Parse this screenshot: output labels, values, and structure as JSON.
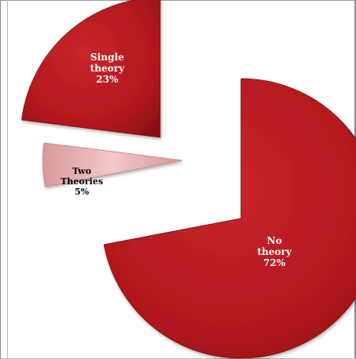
{
  "chart_data": {
    "type": "pie",
    "exploded": true,
    "slices": [
      {
        "name": "No theory",
        "value": 72,
        "value_label": "72%",
        "color": "#b8181d",
        "label_color": "#ffffff"
      },
      {
        "name": "Two Theories",
        "value": 5,
        "value_label": "5%",
        "color": "#e9b5b5",
        "label_color": "#000000"
      },
      {
        "name": "Single theory",
        "value": 23,
        "value_label": "23%",
        "color": "#b51a1c",
        "label_color": "#ffffff"
      }
    ]
  }
}
